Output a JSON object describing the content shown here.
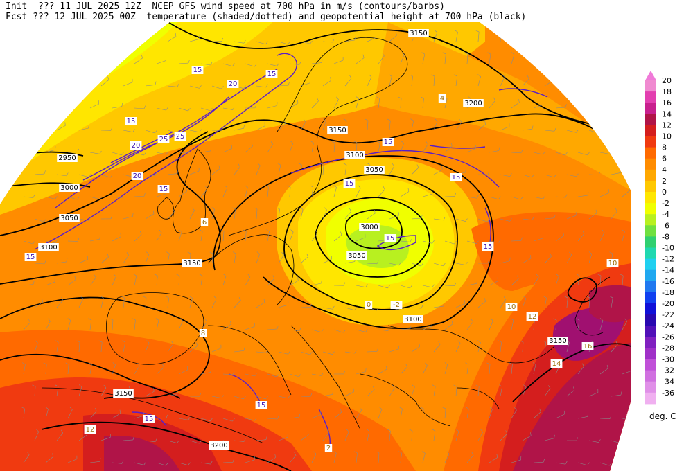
{
  "header": {
    "init_line": "Init  ??? 11 JUL 2025 12Z  NCEP GFS wind speed at 700 hPa in m/s (contours/barbs)",
    "fcst_line": "Fcst ??? 12 JUL 2025 00Z  temperature (shaded/dotted) and geopotential height at 700 hPa (black)"
  },
  "legend": {
    "units": "deg. C",
    "levels": [
      {
        "label": "20",
        "color": "#f08ad0"
      },
      {
        "label": "18",
        "color": "#e33fb0"
      },
      {
        "label": "16",
        "color": "#c8208e"
      },
      {
        "label": "14",
        "color": "#b01448"
      },
      {
        "label": "12",
        "color": "#d41e1e"
      },
      {
        "label": "10",
        "color": "#f03a10"
      },
      {
        "label": "8",
        "color": "#ff6a00"
      },
      {
        "label": "6",
        "color": "#ff8c00"
      },
      {
        "label": "4",
        "color": "#ffa800"
      },
      {
        "label": "2",
        "color": "#ffc800"
      },
      {
        "label": "0",
        "color": "#ffe600"
      },
      {
        "label": "-2",
        "color": "#f0ff00"
      },
      {
        "label": "-4",
        "color": "#b8f020"
      },
      {
        "label": "-6",
        "color": "#70e040"
      },
      {
        "label": "-8",
        "color": "#30d070"
      },
      {
        "label": "-10",
        "color": "#20d8b0"
      },
      {
        "label": "-12",
        "color": "#20d0f0"
      },
      {
        "label": "-14",
        "color": "#20a8f0"
      },
      {
        "label": "-16",
        "color": "#2078f0"
      },
      {
        "label": "-18",
        "color": "#1040f0"
      },
      {
        "label": "-20",
        "color": "#1010d8"
      },
      {
        "label": "-22",
        "color": "#2808b0"
      },
      {
        "label": "-24",
        "color": "#5010b8"
      },
      {
        "label": "-26",
        "color": "#8020c0"
      },
      {
        "label": "-28",
        "color": "#a030c8"
      },
      {
        "label": "-30",
        "color": "#c050d8"
      },
      {
        "label": "-32",
        "color": "#d070e0"
      },
      {
        "label": "-34",
        "color": "#e090e8"
      },
      {
        "label": "-36",
        "color": "#f0b0f0"
      }
    ]
  },
  "height_labels": [
    "3150",
    "3200",
    "3150",
    "3100",
    "3050",
    "3000",
    "3050",
    "3100",
    "3150",
    "2950",
    "3000",
    "3050",
    "3100",
    "3150",
    "3200",
    "3150"
  ],
  "wind_labels": [
    "15",
    "20",
    "25",
    "25",
    "20",
    "20",
    "15",
    "15",
    "15",
    "15",
    "15",
    "15",
    "15",
    "15",
    "15",
    "15",
    "15"
  ],
  "temp_labels": [
    "4",
    "6",
    "8",
    "10",
    "-2",
    "0",
    "2",
    "12",
    "14",
    "16",
    "10",
    "12"
  ]
}
